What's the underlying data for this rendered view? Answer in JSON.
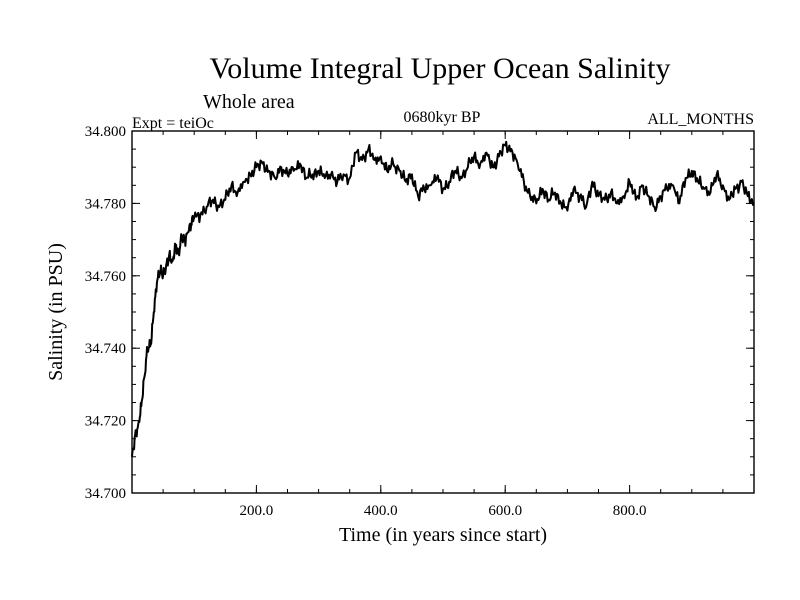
{
  "chart_data": {
    "type": "line",
    "title": "Volume Integral Upper Ocean Salinity",
    "subtitle": "Whole area",
    "experiment_label": "Expt = teiOc",
    "period_label": "0680kyr BP",
    "months_label": "ALL_MONTHS",
    "xlabel": "Time (in years since start)",
    "ylabel": "Salinity (in PSU)",
    "xlim": [
      0,
      1000
    ],
    "ylim": [
      34.7,
      34.8
    ],
    "x_ticks": [
      {
        "value": 200,
        "label": "200.0"
      },
      {
        "value": 400,
        "label": "400.0"
      },
      {
        "value": 600,
        "label": "600.0"
      },
      {
        "value": 800,
        "label": "800.0"
      }
    ],
    "y_ticks": [
      {
        "value": 34.7,
        "label": "34.700"
      },
      {
        "value": 34.72,
        "label": "34.720"
      },
      {
        "value": 34.74,
        "label": "34.740"
      },
      {
        "value": 34.76,
        "label": "34.760"
      },
      {
        "value": 34.78,
        "label": "34.780"
      },
      {
        "value": 34.8,
        "label": "34.800"
      }
    ],
    "x_minor_step": 50,
    "y_minor_step": 0.005,
    "series": [
      {
        "name": "salinity",
        "color": "#000000",
        "x": [
          0,
          5,
          10,
          15,
          20,
          25,
          30,
          35,
          40,
          45,
          50,
          55,
          60,
          65,
          70,
          75,
          80,
          85,
          90,
          95,
          100,
          110,
          120,
          130,
          140,
          150,
          160,
          170,
          180,
          190,
          200,
          210,
          220,
          230,
          240,
          250,
          260,
          270,
          280,
          290,
          300,
          310,
          320,
          330,
          340,
          350,
          360,
          370,
          380,
          390,
          400,
          410,
          420,
          430,
          440,
          450,
          460,
          470,
          480,
          490,
          500,
          510,
          520,
          530,
          540,
          550,
          560,
          570,
          580,
          590,
          600,
          610,
          620,
          630,
          640,
          650,
          660,
          670,
          680,
          690,
          700,
          710,
          720,
          730,
          740,
          750,
          760,
          770,
          780,
          790,
          800,
          810,
          820,
          830,
          840,
          850,
          860,
          870,
          880,
          890,
          900,
          910,
          920,
          930,
          940,
          950,
          960,
          970,
          980,
          990,
          1000
        ],
        "values": [
          34.71,
          34.716,
          34.719,
          34.724,
          34.732,
          34.74,
          34.741,
          34.75,
          34.758,
          34.761,
          34.76,
          34.763,
          34.766,
          34.764,
          34.768,
          34.766,
          34.771,
          34.77,
          34.772,
          34.774,
          34.776,
          34.777,
          34.779,
          34.781,
          34.779,
          34.781,
          34.785,
          34.783,
          34.786,
          34.788,
          34.79,
          34.791,
          34.789,
          34.787,
          34.79,
          34.788,
          34.789,
          34.791,
          34.787,
          34.788,
          34.789,
          34.787,
          34.788,
          34.786,
          34.788,
          34.787,
          34.794,
          34.792,
          34.795,
          34.792,
          34.793,
          34.789,
          34.791,
          34.789,
          34.786,
          34.788,
          34.782,
          34.784,
          34.785,
          34.787,
          34.784,
          34.786,
          34.789,
          34.787,
          34.79,
          34.793,
          34.791,
          34.794,
          34.79,
          34.793,
          34.796,
          34.795,
          34.791,
          34.786,
          34.782,
          34.78,
          34.784,
          34.781,
          34.783,
          34.78,
          34.778,
          34.784,
          34.782,
          34.779,
          34.786,
          34.782,
          34.781,
          34.783,
          34.78,
          34.782,
          34.786,
          34.781,
          34.785,
          34.782,
          34.779,
          34.782,
          34.784,
          34.785,
          34.78,
          34.787,
          34.789,
          34.786,
          34.784,
          34.783,
          34.788,
          34.785,
          34.781,
          34.784,
          34.786,
          34.782,
          34.78
        ]
      }
    ]
  }
}
